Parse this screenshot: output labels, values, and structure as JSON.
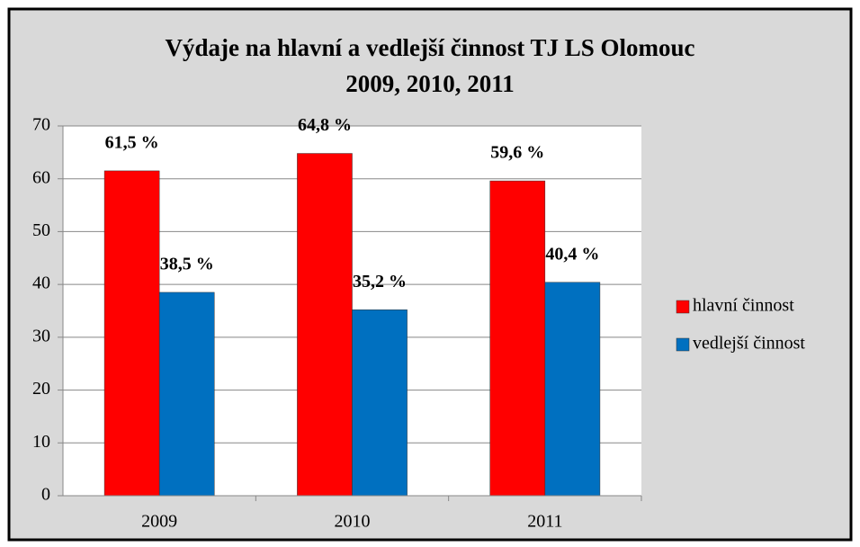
{
  "chart_data": {
    "type": "bar",
    "title": [
      "Výdaje na hlavní a vedlejší činnost TJ LS Olomouc",
      "2009, 2010, 2011"
    ],
    "categories": [
      "2009",
      "2010",
      "2011"
    ],
    "series": [
      {
        "name": "hlavní činnost",
        "color": "#ff0000",
        "values": [
          61.5,
          64.8,
          59.6
        ],
        "value_labels": [
          "61,5 %",
          "64,8 %",
          "59,6 %"
        ]
      },
      {
        "name": "vedlejší činnost",
        "color": "#0070c0",
        "values": [
          38.5,
          35.2,
          40.4
        ],
        "value_labels": [
          "38,5 %",
          "35,2 %",
          "40,4 %"
        ]
      }
    ],
    "ylim": [
      0,
      70
    ],
    "yticks": [
      0,
      10,
      20,
      30,
      40,
      50,
      60,
      70
    ],
    "grid": true,
    "legend": "right"
  }
}
